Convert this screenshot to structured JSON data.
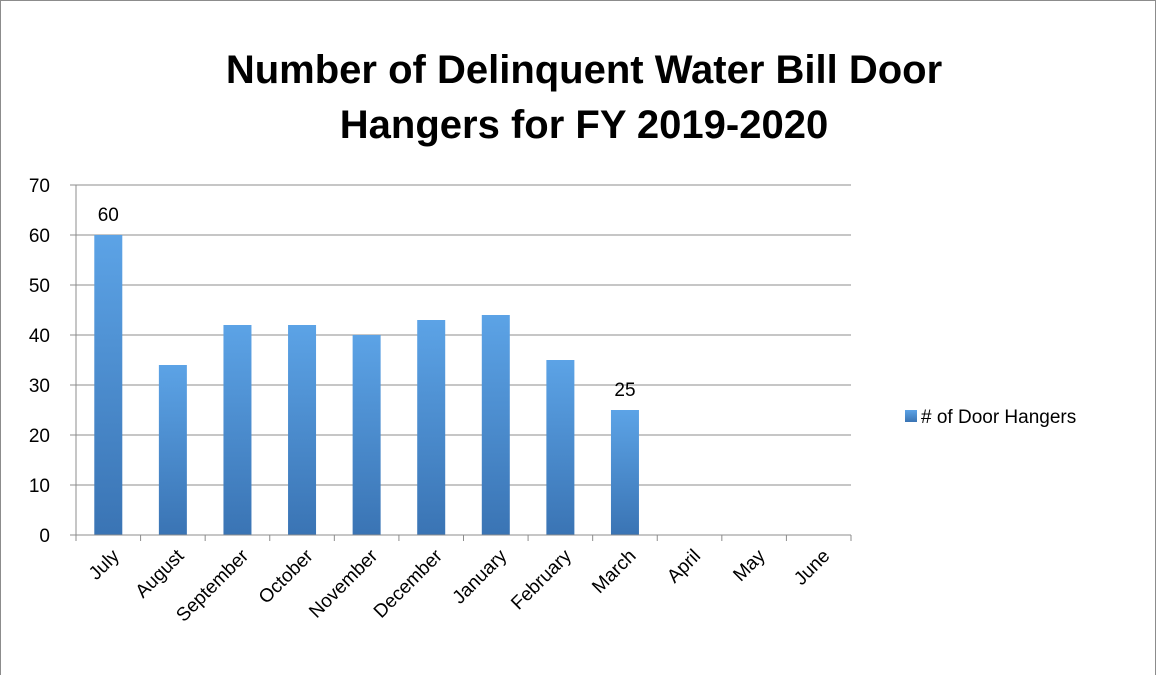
{
  "chart_data": {
    "type": "bar",
    "title": "Number of Delinquent Water Bill Door Hangers for FY 2019-2020",
    "title_lines": [
      "Number of Delinquent Water Bill Door",
      "Hangers for FY 2019-2020"
    ],
    "categories": [
      "July",
      "August",
      "September",
      "October",
      "November",
      "December",
      "January",
      "February",
      "March",
      "April",
      "May",
      "June"
    ],
    "series": [
      {
        "name": "# of Door Hangers",
        "values": [
          60,
          34,
          42,
          42,
          40,
          43,
          44,
          35,
          25,
          null,
          null,
          null
        ],
        "color": "#4a8fd1"
      }
    ],
    "data_labels": [
      {
        "category": "July",
        "value": 60,
        "text": "60"
      },
      {
        "category": "March",
        "value": 25,
        "text": "25"
      }
    ],
    "xlabel": "",
    "ylabel": "",
    "ylim": [
      0,
      70
    ],
    "yticks": [
      0,
      10,
      20,
      30,
      40,
      50,
      60,
      70
    ],
    "grid": true,
    "legend_position": "right",
    "colors": {
      "bar_top": "#5ca3e6",
      "bar_bottom": "#3a74b4",
      "grid": "#8c8c8c",
      "axis": "#8c8c8c",
      "frame": "#8c8c8c"
    }
  }
}
